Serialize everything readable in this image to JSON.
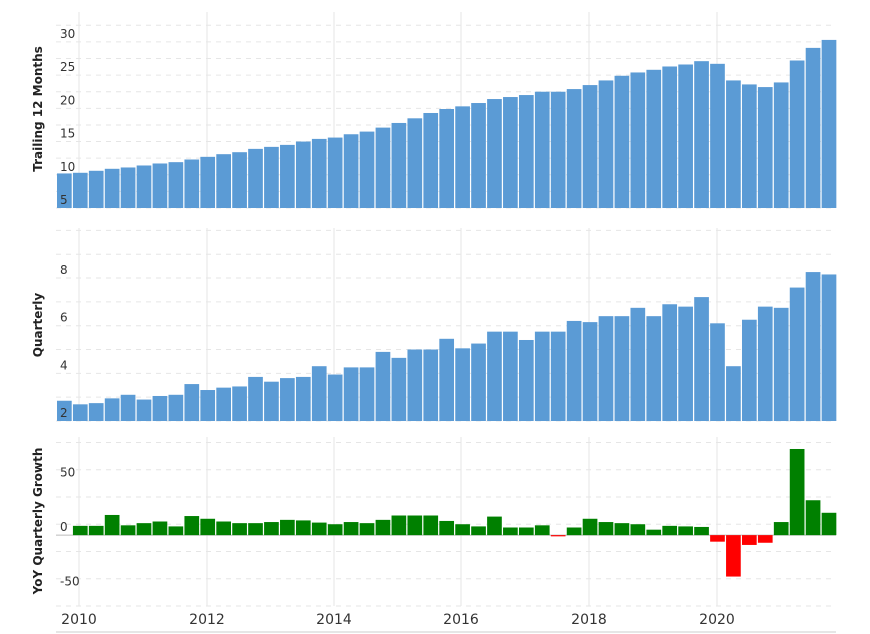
{
  "chart_data": [
    {
      "type": "bar",
      "ylabel": "Trailing 12 Months",
      "ylim": [
        5,
        34.5
      ],
      "yticks": [
        5,
        10,
        15,
        20,
        25,
        30
      ],
      "color": "#5b9bd5",
      "x": [
        "2010-Q1",
        "2010-Q2",
        "2010-Q3",
        "2010-Q4",
        "2011-Q1",
        "2011-Q2",
        "2011-Q3",
        "2011-Q4",
        "2012-Q1",
        "2012-Q2",
        "2012-Q3",
        "2012-Q4",
        "2013-Q1",
        "2013-Q2",
        "2013-Q3",
        "2013-Q4",
        "2014-Q1",
        "2014-Q2",
        "2014-Q3",
        "2014-Q4",
        "2015-Q1",
        "2015-Q2",
        "2015-Q3",
        "2015-Q4",
        "2016-Q1",
        "2016-Q2",
        "2016-Q3",
        "2016-Q4",
        "2017-Q1",
        "2017-Q2",
        "2017-Q3",
        "2017-Q4",
        "2018-Q1",
        "2018-Q2",
        "2018-Q3",
        "2018-Q4",
        "2019-Q1",
        "2019-Q2",
        "2019-Q3",
        "2019-Q4",
        "2020-Q1",
        "2020-Q2",
        "2020-Q3",
        "2020-Q4",
        "2021-Q1",
        "2021-Q2",
        "2021-Q3",
        "2021-Q4",
        "2022-Q1"
      ],
      "values": [
        10.2,
        10.3,
        10.6,
        10.9,
        11.1,
        11.4,
        11.7,
        11.9,
        12.3,
        12.7,
        13.1,
        13.4,
        13.9,
        14.2,
        14.5,
        15.0,
        15.4,
        15.6,
        16.1,
        16.5,
        17.1,
        17.8,
        18.5,
        19.3,
        19.9,
        20.3,
        20.8,
        21.4,
        21.7,
        22.0,
        22.5,
        22.5,
        22.9,
        23.5,
        24.2,
        24.9,
        25.4,
        25.8,
        26.3,
        26.6,
        27.1,
        26.7,
        24.2,
        23.6,
        23.2,
        23.9,
        27.2,
        29.1,
        30.3
      ]
    },
    {
      "type": "bar",
      "ylabel": "Quarterly",
      "ylim": [
        2,
        10.1
      ],
      "yticks": [
        2,
        4,
        6,
        8
      ],
      "color": "#5b9bd5",
      "x": [
        "2010-Q1",
        "2010-Q2",
        "2010-Q3",
        "2010-Q4",
        "2011-Q1",
        "2011-Q2",
        "2011-Q3",
        "2011-Q4",
        "2012-Q1",
        "2012-Q2",
        "2012-Q3",
        "2012-Q4",
        "2013-Q1",
        "2013-Q2",
        "2013-Q3",
        "2013-Q4",
        "2014-Q1",
        "2014-Q2",
        "2014-Q3",
        "2014-Q4",
        "2015-Q1",
        "2015-Q2",
        "2015-Q3",
        "2015-Q4",
        "2016-Q1",
        "2016-Q2",
        "2016-Q3",
        "2016-Q4",
        "2017-Q1",
        "2017-Q2",
        "2017-Q3",
        "2017-Q4",
        "2018-Q1",
        "2018-Q2",
        "2018-Q3",
        "2018-Q4",
        "2019-Q1",
        "2019-Q2",
        "2019-Q3",
        "2019-Q4",
        "2020-Q1",
        "2020-Q2",
        "2020-Q3",
        "2020-Q4",
        "2021-Q1",
        "2021-Q2",
        "2021-Q3",
        "2021-Q4",
        "2022-Q1"
      ],
      "values": [
        2.85,
        2.7,
        2.75,
        2.95,
        3.1,
        2.9,
        3.05,
        3.1,
        3.55,
        3.3,
        3.4,
        3.45,
        3.85,
        3.65,
        3.8,
        3.85,
        4.3,
        3.95,
        4.25,
        4.25,
        4.9,
        4.65,
        5.0,
        5.0,
        5.45,
        5.05,
        5.25,
        5.75,
        5.75,
        5.4,
        5.75,
        5.75,
        6.2,
        6.15,
        6.4,
        6.4,
        6.75,
        6.4,
        6.9,
        6.8,
        7.2,
        6.1,
        4.3,
        6.25,
        6.8,
        6.75,
        7.6,
        8.25,
        8.15
      ]
    },
    {
      "type": "bar",
      "ylabel": "YoY Quarterly Growth",
      "ylim": [
        -65,
        90
      ],
      "yticks": [
        -50,
        0,
        50
      ],
      "positive_color": "#008000",
      "negative_color": "#ff0000",
      "x": [
        "2010-Q1",
        "2010-Q2",
        "2010-Q3",
        "2010-Q4",
        "2011-Q1",
        "2011-Q2",
        "2011-Q3",
        "2011-Q4",
        "2012-Q1",
        "2012-Q2",
        "2012-Q3",
        "2012-Q4",
        "2013-Q1",
        "2013-Q2",
        "2013-Q3",
        "2013-Q4",
        "2014-Q1",
        "2014-Q2",
        "2014-Q3",
        "2014-Q4",
        "2015-Q1",
        "2015-Q2",
        "2015-Q3",
        "2015-Q4",
        "2016-Q1",
        "2016-Q2",
        "2016-Q3",
        "2016-Q4",
        "2017-Q1",
        "2017-Q2",
        "2017-Q3",
        "2017-Q4",
        "2018-Q1",
        "2018-Q2",
        "2018-Q3",
        "2018-Q4",
        "2019-Q1",
        "2019-Q2",
        "2019-Q3",
        "2019-Q4",
        "2020-Q1",
        "2020-Q2",
        "2020-Q3",
        "2020-Q4",
        "2021-Q1",
        "2021-Q2",
        "2021-Q3",
        "2021-Q4",
        "2022-Q1"
      ],
      "values": [
        null,
        8.5,
        8.5,
        18.5,
        9.0,
        11.0,
        12.5,
        8.0,
        17.5,
        15.0,
        12.5,
        11.0,
        11.0,
        12.0,
        14.0,
        13.5,
        11.5,
        10.0,
        12.0,
        11.0,
        14.0,
        18.0,
        18.0,
        18.0,
        13.0,
        10.0,
        8.0,
        17.0,
        7.0,
        7.0,
        9.0,
        -1.0,
        7.0,
        15.0,
        12.0,
        11.0,
        10.0,
        5.0,
        8.5,
        8.0,
        7.5,
        -6.0,
        -38.0,
        -9.0,
        -7.0,
        12.0,
        79.0,
        32.0,
        20.5
      ]
    }
  ],
  "x_axis": {
    "tick_labels": [
      "2010",
      "2012",
      "2014",
      "2016",
      "2018",
      "2020"
    ]
  },
  "style": {
    "grid_color": "#e6e6e6",
    "axis_color": "#cccccc"
  }
}
